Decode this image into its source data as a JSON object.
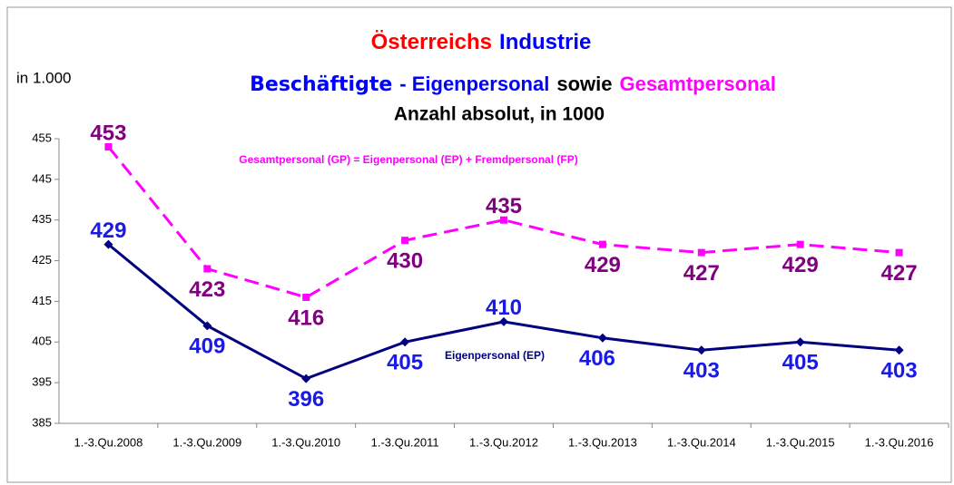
{
  "chart_data": {
    "type": "line",
    "title_parts": [
      {
        "text": "Österreichs",
        "color": "#ff0000"
      },
      {
        "text": "Industrie",
        "color": "#0000ff"
      }
    ],
    "subtitle_parts": [
      {
        "text": "Beschäftigte",
        "color": "#0000ff"
      },
      {
        "text": "- Eigenpersonal",
        "color": "#0000ff"
      },
      {
        "text": "sowie",
        "color": "#000000"
      },
      {
        "text": "Gesamtpersonal",
        "color": "#ff00ff"
      }
    ],
    "subtitle2": "Anzahl absolut, in 1000",
    "y_axis_label": "in 1.000",
    "annotations": [
      {
        "text": "Gesamtpersonal (GP) = Eigenpersonal (EP) + Fremdpersonal (FP)",
        "color": "#ff00ff"
      },
      {
        "text": "Eigenpersonal (EP)",
        "color": "#000080"
      }
    ],
    "categories": [
      "1.-3.Qu.2008",
      "1.-3.Qu.2009",
      "1.-3.Qu.2010",
      "1.-3.Qu.2011",
      "1.-3.Qu.2012",
      "1.-3.Qu.2013",
      "1.-3.Qu.2014",
      "1.-3.Qu.2015",
      "1.-3.Qu.2016"
    ],
    "series": [
      {
        "name": "Gesamtpersonal (GP)",
        "color": "#ff00ff",
        "label_color": "#800080",
        "dashed": true,
        "marker": "square",
        "values": [
          453,
          423,
          416,
          430,
          435,
          429,
          427,
          429,
          427
        ]
      },
      {
        "name": "Eigenpersonal (EP)",
        "color": "#000080",
        "label_color": "#1a1ae6",
        "dashed": false,
        "marker": "diamond",
        "values": [
          429,
          409,
          396,
          405,
          410,
          406,
          403,
          405,
          403
        ]
      }
    ],
    "ylim": [
      385,
      455
    ],
    "yticks": [
      385,
      395,
      405,
      415,
      425,
      435,
      445,
      455
    ],
    "grid": false
  }
}
